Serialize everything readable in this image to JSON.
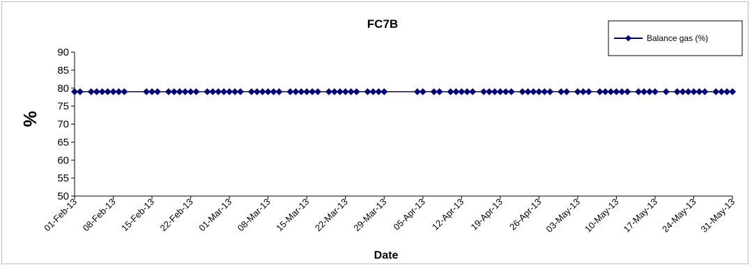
{
  "chart_data": {
    "type": "line",
    "title": "FC7B",
    "xlabel": "Date",
    "ylabel": "%",
    "ylim": [
      50,
      90
    ],
    "yticks": [
      50,
      55,
      60,
      65,
      70,
      75,
      80,
      85,
      90
    ],
    "xlim": [
      "01-Feb-13",
      "31-May-13"
    ],
    "xticks": [
      "01-Feb-13",
      "08-Feb-13",
      "15-Feb-13",
      "22-Feb-13",
      "01-Mar-13",
      "08-Mar-13",
      "15-Mar-13",
      "22-Mar-13",
      "29-Mar-13",
      "05-Apr-13",
      "12-Apr-13",
      "19-Apr-13",
      "26-Apr-13",
      "03-May-13",
      "10-May-13",
      "17-May-13",
      "24-May-13",
      "31-May-13"
    ],
    "grid": false,
    "legend_position": "top-right",
    "series": [
      {
        "name": "Balance gas (%)",
        "color": "#000080",
        "marker": "diamond",
        "x": [
          "01-Feb-13",
          "02-Feb-13",
          "04-Feb-13",
          "05-Feb-13",
          "06-Feb-13",
          "07-Feb-13",
          "08-Feb-13",
          "09-Feb-13",
          "10-Feb-13",
          "14-Feb-13",
          "15-Feb-13",
          "16-Feb-13",
          "18-Feb-13",
          "19-Feb-13",
          "20-Feb-13",
          "21-Feb-13",
          "22-Feb-13",
          "23-Feb-13",
          "25-Feb-13",
          "26-Feb-13",
          "27-Feb-13",
          "28-Feb-13",
          "01-Mar-13",
          "02-Mar-13",
          "03-Mar-13",
          "05-Mar-13",
          "06-Mar-13",
          "07-Mar-13",
          "08-Mar-13",
          "09-Mar-13",
          "10-Mar-13",
          "12-Mar-13",
          "13-Mar-13",
          "14-Mar-13",
          "15-Mar-13",
          "16-Mar-13",
          "17-Mar-13",
          "19-Mar-13",
          "20-Mar-13",
          "21-Mar-13",
          "22-Mar-13",
          "23-Mar-13",
          "24-Mar-13",
          "26-Mar-13",
          "27-Mar-13",
          "28-Mar-13",
          "29-Mar-13",
          "04-Apr-13",
          "05-Apr-13",
          "07-Apr-13",
          "08-Apr-13",
          "10-Apr-13",
          "11-Apr-13",
          "12-Apr-13",
          "13-Apr-13",
          "14-Apr-13",
          "16-Apr-13",
          "17-Apr-13",
          "18-Apr-13",
          "19-Apr-13",
          "20-Apr-13",
          "21-Apr-13",
          "23-Apr-13",
          "24-Apr-13",
          "25-Apr-13",
          "26-Apr-13",
          "27-Apr-13",
          "28-Apr-13",
          "30-Apr-13",
          "01-May-13",
          "03-May-13",
          "04-May-13",
          "05-May-13",
          "07-May-13",
          "08-May-13",
          "09-May-13",
          "10-May-13",
          "11-May-13",
          "12-May-13",
          "14-May-13",
          "15-May-13",
          "16-May-13",
          "17-May-13",
          "19-May-13",
          "21-May-13",
          "22-May-13",
          "23-May-13",
          "24-May-13",
          "25-May-13",
          "26-May-13",
          "28-May-13",
          "29-May-13",
          "30-May-13",
          "31-May-13"
        ],
        "values": [
          79,
          79,
          79,
          79,
          79,
          79,
          79,
          79,
          79,
          79,
          79,
          79,
          79,
          79,
          79,
          79,
          79,
          79,
          79,
          79,
          79,
          79,
          79,
          79,
          79,
          79,
          79,
          79,
          79,
          79,
          79,
          79,
          79,
          79,
          79,
          79,
          79,
          79,
          79,
          79,
          79,
          79,
          79,
          79,
          79,
          79,
          79,
          79,
          79,
          79,
          79,
          79,
          79,
          79,
          79,
          79,
          79,
          79,
          79,
          79,
          79,
          79,
          79,
          79,
          79,
          79,
          79,
          79,
          79,
          79,
          79,
          79,
          79,
          79,
          79,
          79,
          79,
          79,
          79,
          79,
          79,
          79,
          79,
          79,
          79,
          79,
          79,
          79,
          79,
          79,
          79,
          79,
          79,
          79
        ]
      }
    ]
  }
}
